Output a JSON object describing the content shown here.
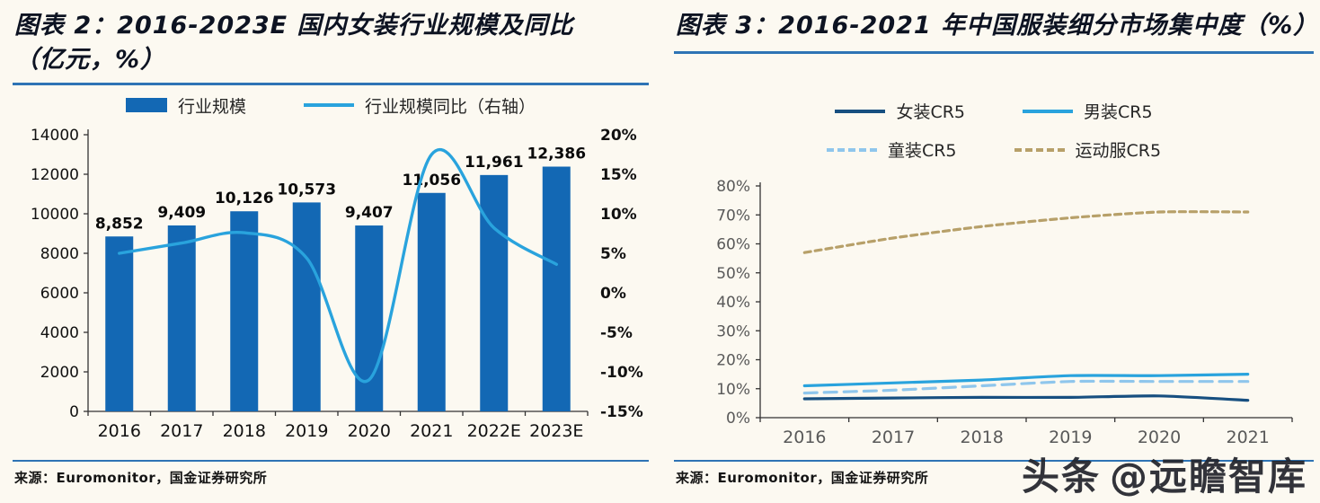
{
  "panels": [
    {
      "title": "图表 2：2016-2023E 国内女装行业规模及同比（亿元，%）",
      "source": "来源：Euromonitor，国金证券研究所"
    },
    {
      "title": "图表 3：2016-2021 年中国服装细分市场集中度（%）",
      "source": "来源：Euromonitor，国金证券研究所"
    }
  ],
  "watermark": {
    "brand": "头条",
    "handle": "@远瞻智库"
  },
  "colors": {
    "accent_rule": "#2e74b5",
    "bar": "#1368b4",
    "yoy_line": "#29a3dd",
    "background": "#fcf9f1",
    "axis_gray": "#595959"
  },
  "chart_data": [
    {
      "type": "bar",
      "title": "2016-2023E 国内女装行业规模及同比（亿元，%）",
      "categories": [
        "2016",
        "2017",
        "2018",
        "2019",
        "2020",
        "2021",
        "2022E",
        "2023E"
      ],
      "series": [
        {
          "name": "行业规模",
          "kind": "bar",
          "axis": "left",
          "color": "#1368b4",
          "values": [
            8852,
            9409,
            10126,
            10573,
            9407,
            11056,
            11961,
            12386
          ],
          "labels": [
            "8,852",
            "9,409",
            "10,126",
            "10,573",
            "9,407",
            "11,056",
            "11,961",
            "12,386"
          ]
        },
        {
          "name": "行业规模同比（右轴）",
          "kind": "line",
          "axis": "right",
          "color": "#29a3dd",
          "line_dash": "solid",
          "values": [
            5.0,
            6.3,
            7.6,
            4.4,
            -11.0,
            17.5,
            8.2,
            3.6
          ]
        }
      ],
      "left_axis": {
        "min": 0,
        "max": 14000,
        "step": 2000,
        "ticks": [
          "0",
          "2000",
          "4000",
          "6000",
          "8000",
          "10000",
          "12000",
          "14000"
        ]
      },
      "right_axis": {
        "min": -15,
        "max": 20,
        "step": 5,
        "ticks": [
          "-15%",
          "-10%",
          "-5%",
          "0%",
          "5%",
          "10%",
          "15%",
          "20%"
        ]
      },
      "grid": false,
      "legend_position": "top"
    },
    {
      "type": "line",
      "title": "2016-2021 年中国服装细分市场集中度（%）",
      "categories": [
        "2016",
        "2017",
        "2018",
        "2019",
        "2020",
        "2021"
      ],
      "series": [
        {
          "name": "女装CR5",
          "kind": "line",
          "color": "#174f80",
          "line_dash": "solid",
          "values": [
            6.5,
            6.8,
            7,
            7,
            7.5,
            6
          ]
        },
        {
          "name": "男装CR5",
          "kind": "line",
          "color": "#29a3dd",
          "line_dash": "solid",
          "values": [
            11,
            12,
            13,
            14.5,
            14.5,
            15
          ]
        },
        {
          "name": "童装CR5",
          "kind": "line",
          "color": "#8fc6ec",
          "line_dash": "dash-long",
          "values": [
            8.5,
            9.5,
            11,
            12.5,
            12.5,
            12.5
          ]
        },
        {
          "name": "运动服CR5",
          "kind": "line",
          "color": "#b7a069",
          "line_dash": "dash-short",
          "values": [
            57,
            62,
            66,
            69,
            71,
            71
          ]
        }
      ],
      "y_axis": {
        "min": 0,
        "max": 80,
        "step": 10,
        "ticks": [
          "0%",
          "10%",
          "20%",
          "30%",
          "40%",
          "50%",
          "60%",
          "70%",
          "80%"
        ]
      },
      "grid": false,
      "legend_position": "top"
    }
  ]
}
